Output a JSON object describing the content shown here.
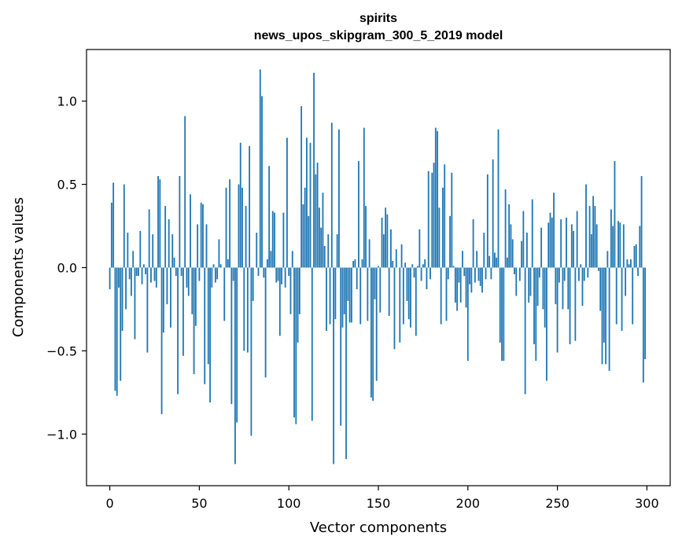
{
  "chart_data": {
    "type": "bar",
    "title": "spirits",
    "subtitle": "news_upos_skipgram_300_5_2019 model",
    "xlabel": "Vector components",
    "ylabel": "Components values",
    "bar_color": "#1f77b4",
    "xlim": [
      -13,
      313
    ],
    "ylim": [
      -1.31,
      1.31
    ],
    "xticks": [
      0,
      50,
      100,
      150,
      200,
      250,
      300
    ],
    "xtick_labels": [
      "0",
      "50",
      "100",
      "150",
      "200",
      "250",
      "300"
    ],
    "yticks": [
      -1.0,
      -0.5,
      0.0,
      0.5,
      1.0
    ],
    "ytick_labels": [
      "−1.0",
      "−0.5",
      "0.0",
      "0.5",
      "1.0"
    ],
    "grid": false,
    "values": [
      -0.13,
      0.39,
      0.51,
      -0.74,
      -0.77,
      -0.12,
      -0.68,
      -0.38,
      0.5,
      -0.25,
      0.21,
      -0.07,
      -0.17,
      0.1,
      -0.43,
      -0.05,
      -0.05,
      0.22,
      -0.1,
      0.02,
      -0.04,
      -0.51,
      0.35,
      -0.09,
      0.2,
      -0.08,
      -0.12,
      0.55,
      0.53,
      -0.88,
      -0.39,
      0.37,
      -0.22,
      0.29,
      -0.36,
      0.2,
      0.06,
      -0.05,
      -0.76,
      0.55,
      -0.05,
      -0.53,
      0.91,
      -0.12,
      -0.17,
      0.44,
      -0.28,
      -0.64,
      -0.35,
      0.26,
      -0.08,
      0.39,
      0.38,
      -0.7,
      0.26,
      -0.58,
      -0.81,
      -0.12,
      0.02,
      -0.09,
      -0.07,
      0.17,
      0.02,
      0.0,
      -0.32,
      0.48,
      0.05,
      0.53,
      -0.82,
      -0.08,
      -1.18,
      -0.93,
      0.5,
      0.75,
      0.48,
      -0.5,
      0.37,
      -0.51,
      0.73,
      -1.01,
      -0.2,
      0.0,
      0.21,
      -0.05,
      1.19,
      1.03,
      -0.06,
      -0.66,
      0.05,
      0.61,
      0.1,
      0.34,
      0.33,
      -0.09,
      -0.08,
      -0.41,
      -0.1,
      0.33,
      -0.12,
      0.78,
      -0.05,
      -0.28,
      0.1,
      -0.9,
      -0.94,
      -0.45,
      -0.28,
      0.97,
      0.38,
      0.48,
      0.78,
      0.31,
      0.75,
      -0.92,
      1.17,
      0.56,
      0.63,
      0.36,
      0.24,
      0.45,
      0.13,
      -0.38,
      0.2,
      -0.34,
      0.87,
      -1.18,
      -0.31,
      0.2,
      0.83,
      -0.95,
      -0.36,
      -0.28,
      -1.15,
      -0.2,
      -0.33,
      -0.33,
      0.04,
      0.05,
      -0.13,
      0.64,
      -0.34,
      0.05,
      0.84,
      0.37,
      -0.32,
      0.17,
      -0.78,
      -0.8,
      -0.19,
      -0.68,
      0.01,
      -0.27,
      0.3,
      0.2,
      0.36,
      0.32,
      -0.29,
      0.23,
      0.04,
      -0.49,
      0.11,
      0.0,
      -0.45,
      0.14,
      -0.34,
      0.03,
      -0.2,
      -0.31,
      -0.36,
      0.02,
      -0.06,
      -0.41,
      0.01,
      0.23,
      -0.08,
      0.02,
      0.05,
      -0.13,
      0.58,
      -0.07,
      0.57,
      0.63,
      0.84,
      0.82,
      0.36,
      -0.34,
      0.48,
      0.62,
      -0.32,
      -0.07,
      0.31,
      0.57,
      0.01,
      -0.21,
      -0.26,
      -0.09,
      -0.21,
      0.1,
      -0.05,
      -0.24,
      -0.56,
      -0.1,
      -0.15,
      0.29,
      -0.09,
      0.1,
      -0.08,
      -0.11,
      -0.15,
      0.21,
      -0.07,
      0.56,
      0.07,
      -0.07,
      0.65,
      0.09,
      0.06,
      0.83,
      -0.45,
      -0.56,
      -0.56,
      0.47,
      0.06,
      0.38,
      0.26,
      0.17,
      -0.04,
      -0.17,
      0.0,
      -0.08,
      0.16,
      0.34,
      -0.76,
      0.21,
      -0.21,
      -0.17,
      0.41,
      -0.46,
      -0.56,
      -0.23,
      -0.06,
      0.24,
      -0.25,
      -0.36,
      -0.68,
      0.27,
      0.33,
      0.3,
      0.45,
      -0.22,
      -0.51,
      -0.09,
      0.29,
      -0.25,
      -0.08,
      0.3,
      -0.25,
      -0.46,
      0.26,
      0.22,
      -0.44,
      0.34,
      -0.08,
      0.02,
      -0.23,
      -0.08,
      0.5,
      -0.06,
      0.37,
      0.2,
      0.43,
      0.37,
      0.26,
      -0.02,
      -0.26,
      -0.58,
      -0.45,
      -0.58,
      0.1,
      -0.62,
      0.35,
      0.25,
      0.64,
      -0.34,
      0.28,
      0.27,
      -0.38,
      0.26,
      -0.17,
      0.05,
      0.02,
      0.05,
      -0.34,
      0.13,
      0.14,
      -0.05,
      0.25,
      0.55,
      -0.69,
      -0.55
    ]
  }
}
